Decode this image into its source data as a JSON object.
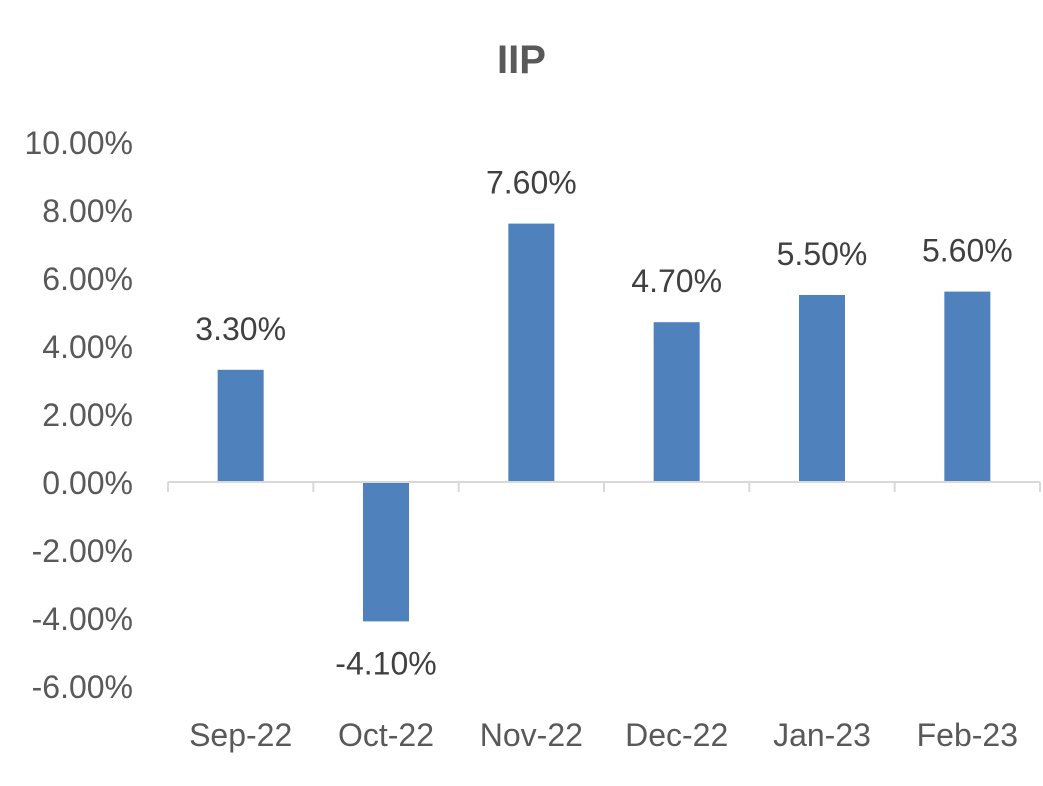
{
  "chart_data": {
    "type": "bar",
    "title": "IIP",
    "categories": [
      "Sep-22",
      "Oct-22",
      "Nov-22",
      "Dec-22",
      "Jan-23",
      "Feb-23"
    ],
    "values": [
      3.3,
      -4.1,
      7.6,
      4.7,
      5.5,
      5.6
    ],
    "data_labels": [
      "3.30%",
      "-4.10%",
      "7.60%",
      "4.70%",
      "5.50%",
      "5.60%"
    ],
    "y_ticks": [
      10,
      8,
      6,
      4,
      2,
      0,
      -2,
      -4,
      -6
    ],
    "y_tick_labels": [
      "10.00%",
      "8.00%",
      "6.00%",
      "4.00%",
      "2.00%",
      "0.00%",
      "-2.00%",
      "-4.00%",
      "-6.00%"
    ],
    "ylim": [
      -6,
      10
    ],
    "xlabel": "",
    "ylabel": "",
    "grid": false,
    "legend": "none",
    "colors": {
      "bar": "#4f81bd",
      "axis": "#d9d9d9",
      "text": "#595959",
      "label": "#404040"
    }
  }
}
